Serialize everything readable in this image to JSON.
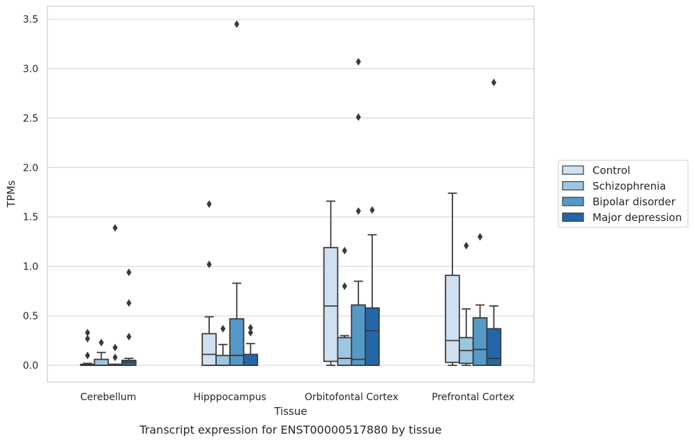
{
  "chart_data": {
    "type": "box",
    "caption": "Transcript expression for ENST00000517880 by tissue",
    "xlabel": "Tissue",
    "ylabel": "TPMs",
    "ylim": [
      -0.17,
      3.62
    ],
    "yticks": [
      "0.0",
      "0.5",
      "1.0",
      "1.5",
      "2.0",
      "2.5",
      "3.0",
      "3.5"
    ],
    "categories": [
      "Cerebellum",
      "Hipppocampus",
      "Orbitofontal Cortex",
      "Prefrontal Cortex"
    ],
    "grid": true,
    "legend_position": "right",
    "series": [
      {
        "name": "Control",
        "color": "#cfe0f0",
        "boxes": [
          {
            "q1": 0.0,
            "median": 0.0,
            "q3": 0.01,
            "whisker_low": 0.0,
            "whisker_high": 0.02,
            "outliers": [
              0.33,
              0.27,
              0.1
            ]
          },
          {
            "q1": 0.0,
            "median": 0.11,
            "q3": 0.32,
            "whisker_low": 0.0,
            "whisker_high": 0.49,
            "outliers": [
              1.63,
              1.02
            ]
          },
          {
            "q1": 0.04,
            "median": 0.6,
            "q3": 1.19,
            "whisker_low": 0.0,
            "whisker_high": 1.66,
            "outliers": []
          },
          {
            "q1": 0.03,
            "median": 0.25,
            "q3": 0.91,
            "whisker_low": 0.0,
            "whisker_high": 1.74,
            "outliers": []
          }
        ]
      },
      {
        "name": "Schizophrenia",
        "color": "#9dc6df",
        "boxes": [
          {
            "q1": 0.0,
            "median": 0.0,
            "q3": 0.06,
            "whisker_low": 0.0,
            "whisker_high": 0.13,
            "outliers": [
              0.23
            ]
          },
          {
            "q1": 0.0,
            "median": 0.0,
            "q3": 0.1,
            "whisker_low": 0.0,
            "whisker_high": 0.21,
            "outliers": [
              0.37
            ]
          },
          {
            "q1": 0.0,
            "median": 0.07,
            "q3": 0.28,
            "whisker_low": 0.0,
            "whisker_high": 0.3,
            "outliers": [
              1.16,
              0.8
            ]
          },
          {
            "q1": 0.02,
            "median": 0.15,
            "q3": 0.28,
            "whisker_low": 0.0,
            "whisker_high": 0.57,
            "outliers": [
              1.21
            ]
          }
        ]
      },
      {
        "name": "Bipolar disorder",
        "color": "#5599c7",
        "boxes": [
          {
            "q1": 0.0,
            "median": 0.0,
            "q3": 0.01,
            "whisker_low": 0.0,
            "whisker_high": 0.01,
            "outliers": [
              1.39,
              0.18,
              0.08
            ]
          },
          {
            "q1": 0.0,
            "median": 0.1,
            "q3": 0.47,
            "whisker_low": 0.0,
            "whisker_high": 0.83,
            "outliers": [
              3.45
            ]
          },
          {
            "q1": 0.0,
            "median": 0.06,
            "q3": 0.61,
            "whisker_low": 0.0,
            "whisker_high": 0.85,
            "outliers": [
              3.07,
              2.51,
              1.56
            ]
          },
          {
            "q1": 0.0,
            "median": 0.16,
            "q3": 0.48,
            "whisker_low": 0.0,
            "whisker_high": 0.61,
            "outliers": [
              1.3
            ]
          }
        ]
      },
      {
        "name": "Major depression",
        "color": "#2467a9",
        "boxes": [
          {
            "q1": 0.0,
            "median": 0.03,
            "q3": 0.05,
            "whisker_low": 0.0,
            "whisker_high": 0.07,
            "outliers": [
              0.94,
              0.63,
              0.29
            ]
          },
          {
            "q1": 0.0,
            "median": 0.0,
            "q3": 0.11,
            "whisker_low": 0.0,
            "whisker_high": 0.22,
            "outliers": [
              0.38,
              0.33
            ]
          },
          {
            "q1": 0.0,
            "median": 0.35,
            "q3": 0.58,
            "whisker_low": 0.0,
            "whisker_high": 1.32,
            "outliers": [
              1.57
            ]
          },
          {
            "q1": 0.0,
            "median": 0.07,
            "q3": 0.37,
            "whisker_low": 0.0,
            "whisker_high": 0.6,
            "outliers": [
              2.86
            ]
          }
        ]
      }
    ]
  }
}
